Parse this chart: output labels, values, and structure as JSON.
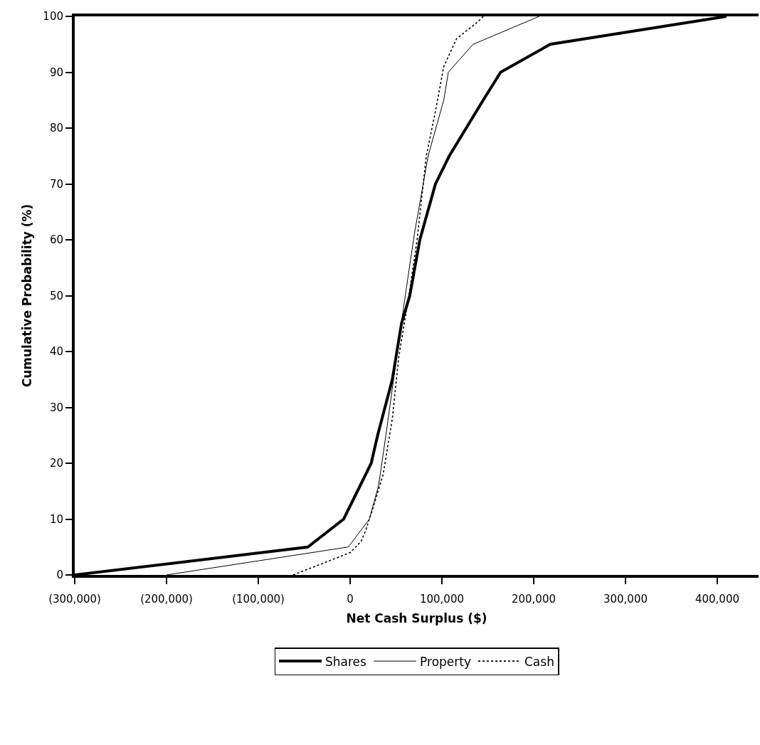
{
  "chart_data": {
    "type": "line",
    "xlabel": "Net Cash Surplus ($)",
    "ylabel": "Cumulative Probability (%)",
    "xlim": [
      -300000,
      445000
    ],
    "ylim": [
      0,
      100
    ],
    "xticks": [
      {
        "value": -300000,
        "label": "(300,000)"
      },
      {
        "value": -200000,
        "label": "(200,000)"
      },
      {
        "value": -100000,
        "label": "(100,000)"
      },
      0,
      {
        "value": 100000,
        "label": "100,000"
      },
      {
        "value": 200000,
        "label": "200,000"
      },
      {
        "value": 300000,
        "label": "300,000"
      },
      {
        "value": 400000,
        "label": "400,000"
      }
    ],
    "yticks": [
      0,
      10,
      20,
      30,
      40,
      50,
      60,
      70,
      80,
      90,
      100
    ],
    "grid": false,
    "legend": "bottom",
    "marker": "none",
    "series": [
      {
        "name": "Shares",
        "color": "#000000",
        "line_style": "solid",
        "x": [
          -300000,
          -46000,
          -7000,
          8000,
          23000,
          30000,
          46000,
          56000,
          65000,
          76000,
          93000,
          108000,
          145000,
          164000,
          218000,
          410000
        ],
        "values": [
          0,
          5,
          10,
          15,
          20,
          25,
          35,
          45,
          50,
          60,
          70,
          75,
          85,
          90,
          95,
          100
        ]
      },
      {
        "name": "Property",
        "color": "#000000",
        "line_style": "solid",
        "x": [
          -200000,
          -2000,
          21000,
          31000,
          39000,
          54000,
          61000,
          70000,
          85000,
          102000,
          107000,
          134000,
          206000
        ],
        "values": [
          0,
          5,
          10,
          16,
          25,
          43,
          51,
          61,
          75,
          85,
          90,
          95,
          100
        ]
      },
      {
        "name": "Cash",
        "color": "#000000",
        "line_style": "dotted",
        "x": [
          -62000,
          0,
          12000,
          17000,
          23000,
          36000,
          46000,
          53000,
          65000,
          73000,
          83000,
          93000,
          102000,
          116000,
          139000,
          145000
        ],
        "values": [
          0,
          4,
          6,
          8,
          11,
          18,
          28,
          39,
          51,
          60,
          75,
          83,
          91,
          96,
          99,
          100
        ]
      }
    ]
  }
}
